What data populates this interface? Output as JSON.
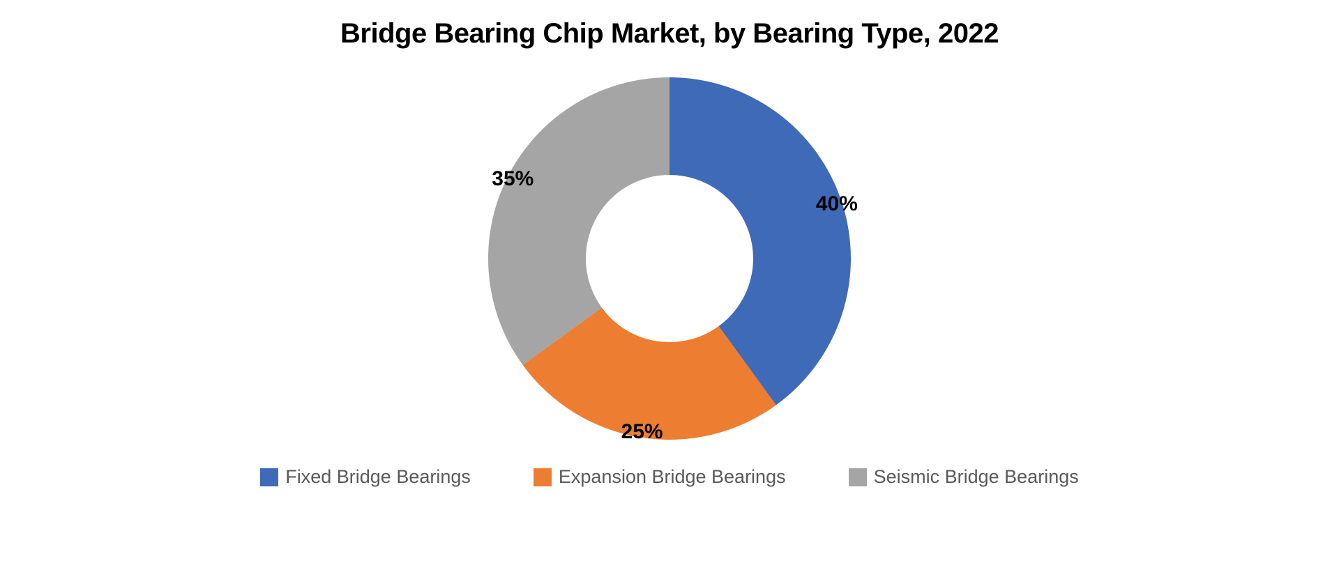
{
  "chart": {
    "type": "donut",
    "title": "Bridge Bearing Chip Market, by Bearing Type, 2022",
    "title_fontsize": 40,
    "title_color": "#000000",
    "background_color": "#ffffff",
    "outer_radius": 260,
    "inner_radius": 120,
    "start_angle_deg": 0,
    "slices": [
      {
        "label": "Fixed Bridge Bearings",
        "value": 40,
        "percent_text": "40%",
        "color": "#3f6ab8"
      },
      {
        "label": "Expansion Bridge Bearings",
        "value": 25,
        "percent_text": "25%",
        "color": "#ed7d31"
      },
      {
        "label": "Seismic Bridge Bearings",
        "value": 35,
        "percent_text": "35%",
        "color": "#a5a5a5"
      }
    ],
    "label_fontsize": 30,
    "label_fontweight": 700,
    "label_color": "#000000",
    "label_radius_factor": 0.97,
    "legend": {
      "position": "bottom",
      "swatch_size": 26,
      "fontsize": 27,
      "text_color": "#595959",
      "gap": 90
    }
  }
}
